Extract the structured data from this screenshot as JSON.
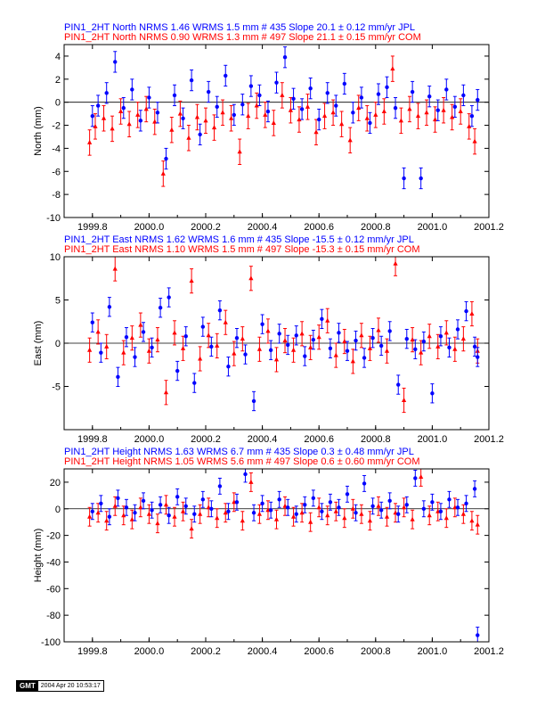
{
  "chart_data": [
    {
      "type": "scatter",
      "id": "north",
      "ylabel": "North (mm)",
      "xlim": [
        1999.7,
        2001.2
      ],
      "ylim": [
        -10,
        5
      ],
      "xticks": [
        1999.8,
        2000.0,
        2000.2,
        2000.4,
        2000.6,
        2000.8,
        2001.0,
        2001.2
      ],
      "xtick_labels": [
        "1999.8",
        "2000.0",
        "2000.2",
        "2000.4",
        "2000.6",
        "2000.8",
        "2001.0",
        "2001.2"
      ],
      "yticks": [
        -10,
        -8,
        -6,
        -4,
        -2,
        0,
        2,
        4
      ],
      "ytick_labels": [
        "-10",
        "-8",
        "-6",
        "-4",
        "-2",
        "0",
        "2",
        "4"
      ],
      "headers": [
        {
          "text": "PIN1_2HT North NRMS 1.46 WRMS  1.5 mm # 435 Slope   20.1 ±  0.12 mm/yr JPL",
          "color": "#0000ff"
        },
        {
          "text": "PIN1_2HT North NRMS 0.90 WRMS  1.3 mm # 497 Slope   21.1 ±  0.15 mm/yr COM",
          "color": "#ff0000"
        }
      ],
      "series": [
        {
          "color": "#ff0000",
          "err": 1.1,
          "x": [
            1999.79,
            1999.81,
            1999.84,
            1999.87,
            1999.9,
            1999.93,
            1999.96,
            1999.99,
            2000.02,
            2000.05,
            2000.08,
            2000.11,
            2000.14,
            2000.17,
            2000.2,
            2000.23,
            2000.26,
            2000.29,
            2000.32,
            2000.35,
            2000.38,
            2000.41,
            2000.44,
            2000.47,
            2000.5,
            2000.53,
            2000.56,
            2000.59,
            2000.62,
            2000.65,
            2000.68,
            2000.71,
            2000.74,
            2000.77,
            2000.8,
            2000.83,
            2000.86,
            2000.89,
            2000.92,
            2000.95,
            2000.98,
            2001.01,
            2001.04,
            2001.07,
            2001.1,
            2001.13,
            2001.15
          ],
          "y": [
            -3.5,
            -2.1,
            -1.4,
            -2.3,
            -0.8,
            -1.9,
            -1.1,
            -0.6,
            -1.7,
            -6.2,
            -2.4,
            -1.0,
            -3.1,
            -1.3,
            -1.6,
            -2.2,
            -0.9,
            -1.4,
            -4.3,
            -1.2,
            -0.3,
            -1.1,
            -1.8,
            0.6,
            -0.7,
            -1.5,
            -0.4,
            -2.6,
            -1.2,
            -0.9,
            -1.9,
            -3.3,
            -0.5,
            -1.4,
            -1.1,
            -0.8,
            2.9,
            -1.6,
            -0.6,
            -1.2,
            -0.9,
            -1.5,
            -0.7,
            -1.3,
            -0.8,
            -2.1,
            -3.4
          ]
        },
        {
          "color": "#0000ff",
          "err": 0.9,
          "x": [
            1999.8,
            1999.82,
            1999.85,
            1999.88,
            1999.91,
            1999.94,
            1999.97,
            2000.0,
            2000.03,
            2000.06,
            2000.09,
            2000.12,
            2000.15,
            2000.18,
            2000.21,
            2000.24,
            2000.27,
            2000.3,
            2000.33,
            2000.36,
            2000.39,
            2000.42,
            2000.45,
            2000.48,
            2000.51,
            2000.54,
            2000.57,
            2000.6,
            2000.63,
            2000.66,
            2000.69,
            2000.72,
            2000.75,
            2000.78,
            2000.81,
            2000.84,
            2000.87,
            2000.9,
            2000.93,
            2000.96,
            2000.99,
            2001.02,
            2001.05,
            2001.08,
            2001.11,
            2001.14,
            2001.16
          ],
          "y": [
            -1.2,
            -0.3,
            0.8,
            3.5,
            -0.5,
            1.1,
            -1.6,
            0.4,
            -0.9,
            -4.9,
            0.6,
            -1.4,
            1.9,
            -2.8,
            0.9,
            -0.4,
            2.3,
            -1.1,
            -0.2,
            1.4,
            0.6,
            -0.8,
            1.7,
            3.9,
            0.3,
            -0.6,
            1.2,
            -1.5,
            0.8,
            -0.3,
            1.6,
            -0.9,
            0.4,
            -1.8,
            0.7,
            1.3,
            -0.5,
            -6.6,
            0.9,
            -6.6,
            0.5,
            -0.7,
            1.1,
            -0.4,
            0.6,
            -1.2,
            0.2
          ]
        }
      ]
    },
    {
      "type": "scatter",
      "id": "east",
      "ylabel": "East (mm)",
      "xlim": [
        1999.7,
        2001.2
      ],
      "ylim": [
        -10,
        10
      ],
      "xticks": [
        1999.8,
        2000.0,
        2000.2,
        2000.4,
        2000.6,
        2000.8,
        2001.0,
        2001.2
      ],
      "xtick_labels": [
        "1999.8",
        "2000.0",
        "2000.2",
        "2000.4",
        "2000.6",
        "2000.8",
        "2001.0",
        "2001.2"
      ],
      "yticks": [
        -5,
        0,
        5,
        10
      ],
      "ytick_labels": [
        "-5",
        "0",
        "5",
        "10"
      ],
      "headers": [
        {
          "text": "PIN1_2HT East NRMS 1.62 WRMS  1.6 mm # 435 Slope  -15.5 ±  0.12 mm/yr JPL",
          "color": "#0000ff"
        },
        {
          "text": "PIN1_2HT East NRMS 1.10 WRMS  1.5 mm # 497 Slope  -15.3 ±  0.15 mm/yr COM",
          "color": "#ff0000"
        }
      ],
      "series": [
        {
          "color": "#ff0000",
          "err": 1.4,
          "x": [
            1999.79,
            1999.82,
            1999.85,
            1999.88,
            1999.91,
            1999.94,
            1999.97,
            2000.0,
            2000.03,
            2000.06,
            2000.09,
            2000.12,
            2000.15,
            2000.18,
            2000.21,
            2000.24,
            2000.27,
            2000.3,
            2000.33,
            2000.36,
            2000.39,
            2000.42,
            2000.45,
            2000.48,
            2000.51,
            2000.54,
            2000.57,
            2000.6,
            2000.63,
            2000.66,
            2000.69,
            2000.72,
            2000.75,
            2000.78,
            2000.81,
            2000.84,
            2000.87,
            2000.9,
            2000.93,
            2000.96,
            2000.99,
            2001.02,
            2001.05,
            2001.08,
            2001.11,
            2001.14,
            2001.16
          ],
          "y": [
            -0.8,
            1.3,
            -0.4,
            8.6,
            -1.1,
            0.6,
            2.1,
            -0.9,
            0.4,
            -5.7,
            1.2,
            -0.6,
            7.2,
            -1.8,
            0.9,
            -0.3,
            2.4,
            -1.2,
            0.5,
            7.5,
            -0.7,
            1.4,
            -1.9,
            0.3,
            -0.8,
            1.1,
            -0.5,
            0.7,
            2.6,
            -1.4,
            0.2,
            -2.1,
            0.9,
            -0.6,
            1.5,
            -0.9,
            9.2,
            -6.6,
            0.4,
            -1.1,
            0.8,
            -0.4,
            1.2,
            -0.7,
            0.5,
            3.4,
            -0.9
          ]
        },
        {
          "color": "#0000ff",
          "err": 1.1,
          "x": [
            1999.8,
            1999.83,
            1999.86,
            1999.89,
            1999.92,
            1999.95,
            1999.98,
            2000.01,
            2000.04,
            2000.07,
            2000.1,
            2000.13,
            2000.16,
            2000.19,
            2000.22,
            2000.25,
            2000.28,
            2000.31,
            2000.34,
            2000.37,
            2000.4,
            2000.43,
            2000.46,
            2000.49,
            2000.52,
            2000.55,
            2000.58,
            2000.61,
            2000.64,
            2000.67,
            2000.7,
            2000.73,
            2000.76,
            2000.79,
            2000.82,
            2000.85,
            2000.88,
            2000.91,
            2000.94,
            2000.97,
            2001.0,
            2001.03,
            2001.06,
            2001.09,
            2001.12,
            2001.15,
            2001.16
          ],
          "y": [
            2.4,
            -1.1,
            4.2,
            -3.9,
            0.7,
            -1.6,
            1.3,
            -0.5,
            4.1,
            5.3,
            -3.2,
            0.8,
            -4.6,
            1.9,
            -0.4,
            3.8,
            -2.7,
            0.6,
            -1.3,
            -6.7,
            2.2,
            -0.8,
            1.1,
            -0.2,
            0.9,
            -1.5,
            0.4,
            2.8,
            -0.6,
            1.2,
            -0.9,
            0.3,
            -1.7,
            0.6,
            -0.3,
            1.4,
            -4.8,
            0.5,
            -0.7,
            0.2,
            -5.8,
            0.8,
            -0.5,
            1.6,
            3.7,
            -0.4,
            -1.6
          ]
        }
      ]
    },
    {
      "type": "scatter",
      "id": "height",
      "ylabel": "Height (mm)",
      "xlim": [
        1999.7,
        2001.2
      ],
      "ylim": [
        -100,
        30
      ],
      "xticks": [
        1999.8,
        2000.0,
        2000.2,
        2000.4,
        2000.6,
        2000.8,
        2001.0,
        2001.2
      ],
      "xtick_labels": [
        "1999.8",
        "2000.0",
        "2000.2",
        "2000.4",
        "2000.6",
        "2000.8",
        "2001.0",
        "2001.2"
      ],
      "yticks": [
        -100,
        -80,
        -60,
        -40,
        -20,
        0,
        20
      ],
      "ytick_labels": [
        "-100",
        "-80",
        "-60",
        "-40",
        "-20",
        "0",
        "20"
      ],
      "headers": [
        {
          "text": "PIN1_2HT Height NRMS 1.63 WRMS  6.7 mm # 435 Slope    0.3 ±  0.48 mm/yr JPL",
          "color": "#0000ff"
        },
        {
          "text": "PIN1_2HT Height NRMS 1.05 WRMS  5.6 mm # 497 Slope    0.6 ±  0.60 mm/yr COM",
          "color": "#ff0000"
        }
      ],
      "series": [
        {
          "color": "#ff0000",
          "err": 7,
          "x": [
            1999.79,
            1999.82,
            1999.85,
            1999.88,
            1999.91,
            1999.94,
            1999.97,
            2000.0,
            2000.03,
            2000.06,
            2000.09,
            2000.12,
            2000.15,
            2000.18,
            2000.21,
            2000.24,
            2000.27,
            2000.3,
            2000.33,
            2000.36,
            2000.39,
            2000.42,
            2000.45,
            2000.48,
            2000.51,
            2000.54,
            2000.57,
            2000.6,
            2000.63,
            2000.66,
            2000.69,
            2000.72,
            2000.75,
            2000.78,
            2000.81,
            2000.84,
            2000.87,
            2000.9,
            2000.93,
            2000.96,
            2000.99,
            2001.02,
            2001.05,
            2001.08,
            2001.11,
            2001.14,
            2001.16
          ],
          "y": [
            -6,
            -3,
            -9,
            2,
            -5,
            -8,
            1,
            -4,
            -11,
            3,
            -6,
            -2,
            -15,
            -4,
            1,
            -7,
            -3,
            5,
            -9,
            20,
            -4,
            -1,
            -8,
            2,
            -6,
            -3,
            -10,
            1,
            -5,
            -2,
            -7,
            0,
            -4,
            -9,
            2,
            -6,
            -3,
            1,
            -8,
            24,
            -5,
            -2,
            -7,
            1,
            -4,
            -9,
            -12
          ]
        },
        {
          "color": "#0000ff",
          "err": 6,
          "x": [
            1999.8,
            1999.83,
            1999.86,
            1999.89,
            1999.92,
            1999.95,
            1999.98,
            2000.01,
            2000.04,
            2000.07,
            2000.1,
            2000.13,
            2000.16,
            2000.19,
            2000.22,
            2000.25,
            2000.28,
            2000.31,
            2000.34,
            2000.37,
            2000.4,
            2000.43,
            2000.46,
            2000.49,
            2000.52,
            2000.55,
            2000.58,
            2000.61,
            2000.64,
            2000.67,
            2000.7,
            2000.73,
            2000.76,
            2000.79,
            2000.82,
            2000.85,
            2000.88,
            2000.91,
            2000.94,
            2000.97,
            2001.0,
            2001.03,
            2001.06,
            2001.09,
            2001.12,
            2001.15,
            2001.16
          ],
          "y": [
            -2,
            4,
            -6,
            8,
            1,
            -3,
            6,
            -1,
            3,
            -5,
            9,
            2,
            -4,
            7,
            0,
            17,
            -2,
            5,
            26,
            -3,
            4,
            -1,
            7,
            1,
            -4,
            3,
            8,
            -2,
            5,
            1,
            11,
            -3,
            19,
            2,
            -1,
            6,
            -4,
            3,
            23,
            0,
            5,
            -2,
            7,
            1,
            4,
            15,
            -95
          ]
        }
      ]
    }
  ],
  "footer": {
    "logo": "GMT",
    "timestamp": "2004 Apr 20 10:53:17"
  }
}
